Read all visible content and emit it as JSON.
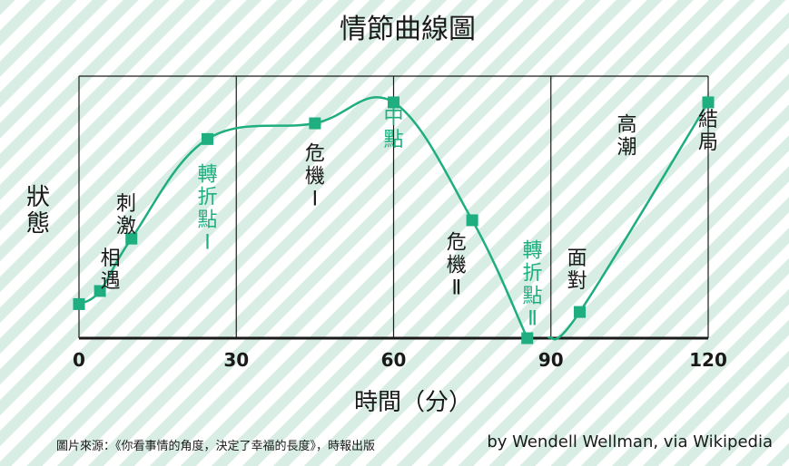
{
  "colors": {
    "accent": "#1fae80",
    "text": "#1a1a1a",
    "stripe": "#d8ede4"
  },
  "chart_data": {
    "type": "line",
    "title": "情節曲線圖",
    "xlabel": "時間（分）",
    "ylabel": "狀態",
    "xlim": [
      0,
      120
    ],
    "ylim": [
      0,
      100
    ],
    "xticks": [
      0,
      30,
      60,
      90,
      120
    ],
    "grid_x": [
      30,
      60,
      90
    ],
    "grid": false,
    "segments": [
      {
        "x": [
          0,
          4,
          10,
          24.5,
          45,
          60,
          75,
          85.5
        ],
        "y": [
          13,
          18,
          38,
          76,
          82,
          90,
          45,
          0
        ]
      },
      {
        "x": [
          89.5,
          95.5,
          120
        ],
        "y": [
          0,
          10,
          90
        ]
      }
    ],
    "annotations": [
      {
        "x": 6,
        "y": 28,
        "text": "相遇",
        "color": "#1a1a1a"
      },
      {
        "x": 9,
        "y": 49,
        "text": "刺激",
        "color": "#1a1a1a"
      },
      {
        "x": 24.5,
        "y": 60,
        "text": "轉折點Ⅰ",
        "color": "#1fae80"
      },
      {
        "x": 45,
        "y": 68,
        "text": "危機Ⅰ",
        "color": "#1a1a1a"
      },
      {
        "x": 60,
        "y": 82,
        "text": "中點",
        "color": "#1fae80"
      },
      {
        "x": 72,
        "y": 34,
        "text": "危機Ⅱ",
        "color": "#1a1a1a"
      },
      {
        "x": 86.5,
        "y": 31,
        "text": "轉折點Ⅱ",
        "color": "#1fae80"
      },
      {
        "x": 95,
        "y": 28,
        "text": "面對",
        "color": "#1a1a1a"
      },
      {
        "x": 104.5,
        "y": 79,
        "text": "高潮",
        "color": "#1a1a1a"
      },
      {
        "x": 120,
        "y": 81,
        "text": "結局",
        "color": "#1a1a1a"
      }
    ]
  },
  "footer": {
    "source": "圖片來源：《你看事情的角度，決定了幸福的長度》，時報出版",
    "credit": "by Wendell Wellman, via Wikipedia"
  }
}
